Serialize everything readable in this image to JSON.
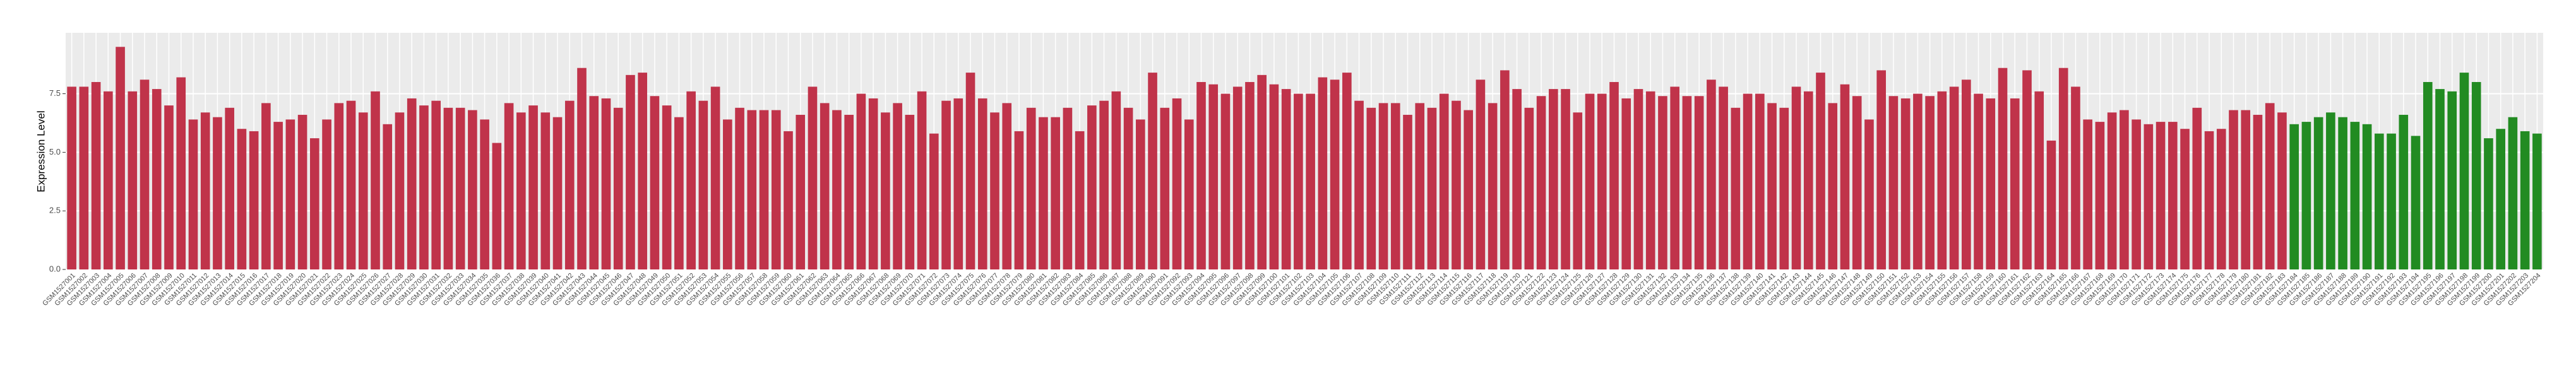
{
  "chart_data": {
    "type": "bar",
    "y_label": "Expression Level",
    "ylim": [
      0,
      10.1
    ],
    "yticks": [
      {
        "value": 0,
        "label": "0.0"
      },
      2.5,
      {
        "value": 5,
        "label": "5.0"
      },
      7.5
    ],
    "grid": true,
    "series": [
      {
        "color": "#c0334a",
        "categories": [
          "GSM1527001",
          "GSM1527002",
          "GSM1527003",
          "GSM1527004",
          "GSM1527005",
          "GSM1527006",
          "GSM1527007",
          "GSM1527008",
          "GSM1527009",
          "GSM1527010",
          "GSM1527011",
          "GSM1527012",
          "GSM1527013",
          "GSM1527014",
          "GSM1527015",
          "GSM1527016",
          "GSM1527017",
          "GSM1527018",
          "GSM1527019",
          "GSM1527020",
          "GSM1527021",
          "GSM1527022",
          "GSM1527023",
          "GSM1527024",
          "GSM1527025",
          "GSM1527026",
          "GSM1527027",
          "GSM1527028",
          "GSM1527029",
          "GSM1527030",
          "GSM1527031",
          "GSM1527032",
          "GSM1527033",
          "GSM1527034",
          "GSM1527035",
          "GSM1527036",
          "GSM1527037",
          "GSM1527038",
          "GSM1527039",
          "GSM1527040",
          "GSM1527041",
          "GSM1527042",
          "GSM1527043",
          "GSM1527044",
          "GSM1527045",
          "GSM1527046",
          "GSM1527047",
          "GSM1527048",
          "GSM1527049",
          "GSM1527050",
          "GSM1527051",
          "GSM1527052",
          "GSM1527053",
          "GSM1527054",
          "GSM1527055",
          "GSM1527056",
          "GSM1527057",
          "GSM1527058",
          "GSM1527059",
          "GSM1527060",
          "GSM1527061",
          "GSM1527062",
          "GSM1527063",
          "GSM1527064",
          "GSM1527065",
          "GSM1527066",
          "GSM1527067",
          "GSM1527068",
          "GSM1527069",
          "GSM1527070",
          "GSM1527071",
          "GSM1527072",
          "GSM1527073",
          "GSM1527074",
          "GSM1527075",
          "GSM1527076",
          "GSM1527077",
          "GSM1527078",
          "GSM1527079",
          "GSM1527080",
          "GSM1527081",
          "GSM1527082",
          "GSM1527083",
          "GSM1527084",
          "GSM1527085",
          "GSM1527086",
          "GSM1527087",
          "GSM1527088",
          "GSM1527089",
          "GSM1527090",
          "GSM1527091",
          "GSM1527092",
          "GSM1527093",
          "GSM1527094",
          "GSM1527095",
          "GSM1527096",
          "GSM1527097",
          "GSM1527098",
          "GSM1527099",
          "GSM1527100",
          "GSM1527101",
          "GSM1527102",
          "GSM1527103",
          "GSM1527104",
          "GSM1527105",
          "GSM1527106",
          "GSM1527107",
          "GSM1527108",
          "GSM1527109",
          "GSM1527110",
          "GSM1527111",
          "GSM1527112",
          "GSM1527113",
          "GSM1527114",
          "GSM1527115",
          "GSM1527116",
          "GSM1527117",
          "GSM1527118",
          "GSM1527119",
          "GSM1527120",
          "GSM1527121",
          "GSM1527122",
          "GSM1527123",
          "GSM1527124",
          "GSM1527125",
          "GSM1527126",
          "GSM1527127",
          "GSM1527128",
          "GSM1527129",
          "GSM1527130",
          "GSM1527131",
          "GSM1527132",
          "GSM1527133",
          "GSM1527134",
          "GSM1527135",
          "GSM1527136",
          "GSM1527137",
          "GSM1527138",
          "GSM1527139",
          "GSM1527140",
          "GSM1527141",
          "GSM1527142",
          "GSM1527143",
          "GSM1527144",
          "GSM1527145",
          "GSM1527146",
          "GSM1527147",
          "GSM1527148",
          "GSM1527149",
          "GSM1527150",
          "GSM1527151",
          "GSM1527152",
          "GSM1527153",
          "GSM1527154",
          "GSM1527155",
          "GSM1527156",
          "GSM1527157",
          "GSM1527158",
          "GSM1527159",
          "GSM1527160",
          "GSM1527161",
          "GSM1527162",
          "GSM1527163",
          "GSM1527164",
          "GSM1527165",
          "GSM1527166",
          "GSM1527167",
          "GSM1527168",
          "GSM1527169",
          "GSM1527170",
          "GSM1527171",
          "GSM1527172",
          "GSM1527173",
          "GSM1527174",
          "GSM1527175",
          "GSM1527176",
          "GSM1527177",
          "GSM1527178",
          "GSM1527179",
          "GSM1527180",
          "GSM1527181",
          "GSM1527182",
          "GSM1527183"
        ],
        "values": [
          7.8,
          7.8,
          8.0,
          7.6,
          9.5,
          7.6,
          8.1,
          7.7,
          7.0,
          8.2,
          6.4,
          6.7,
          6.5,
          6.9,
          6.0,
          5.9,
          7.1,
          6.3,
          6.4,
          6.6,
          5.6,
          6.4,
          7.1,
          7.2,
          6.7,
          7.6,
          6.2,
          6.7,
          7.3,
          7.0,
          7.2,
          6.9,
          6.9,
          6.8,
          6.4,
          5.4,
          7.1,
          6.7,
          7.0,
          6.7,
          6.5,
          7.2,
          8.6,
          7.4,
          7.3,
          6.9,
          8.3,
          8.4,
          7.4,
          7.0,
          6.5,
          7.6,
          7.2,
          7.8,
          6.4,
          6.9,
          6.8,
          6.8,
          6.8,
          5.9,
          6.6,
          7.8,
          7.1,
          6.8,
          6.6,
          7.5,
          7.3,
          6.7,
          7.1,
          6.6,
          7.6,
          5.8,
          7.2,
          7.3,
          8.4,
          7.3,
          6.7,
          7.1,
          5.9,
          6.9,
          6.5,
          6.5,
          6.9,
          5.9,
          7.0,
          7.2,
          7.6,
          6.9,
          6.4,
          8.4,
          6.9,
          7.3,
          6.4,
          8.0,
          7.9,
          7.5,
          7.8,
          8.0,
          8.3,
          7.9,
          7.7,
          7.5,
          7.5,
          8.2,
          8.1,
          8.4,
          7.2,
          6.9,
          7.1,
          7.1,
          6.6,
          7.1,
          6.9,
          7.5,
          7.2,
          6.8,
          8.1,
          7.1,
          8.5,
          7.7,
          6.9,
          7.4,
          7.7,
          7.7,
          6.7,
          7.5,
          7.5,
          8.0,
          7.3,
          7.7,
          7.6,
          7.4,
          7.8,
          7.4,
          7.4,
          8.1,
          7.8,
          6.9,
          7.5,
          7.5,
          7.1,
          6.9,
          7.8,
          7.6,
          8.4,
          7.1,
          7.9,
          7.4,
          6.4,
          8.5,
          7.4,
          7.3,
          7.5,
          7.4,
          7.6,
          7.8,
          8.1,
          7.5,
          7.3,
          8.6,
          7.3,
          8.5,
          7.6,
          5.5,
          8.6,
          7.8,
          6.4,
          6.3,
          6.7,
          6.8,
          6.4,
          6.2,
          6.3,
          6.3,
          6.0,
          6.9,
          5.9,
          6.0,
          6.8,
          6.8,
          6.6,
          7.1,
          6.7
        ]
      },
      {
        "color": "#228b22",
        "categories": [
          "GSM1527184",
          "GSM1527185",
          "GSM1527186",
          "GSM1527187",
          "GSM1527188",
          "GSM1527189",
          "GSM1527190",
          "GSM1527191",
          "GSM1527192",
          "GSM1527193",
          "GSM1527194",
          "GSM1527195",
          "GSM1527196",
          "GSM1527197",
          "GSM1527198",
          "GSM1527199",
          "GSM1527200",
          "GSM1527201",
          "GSM1527202",
          "GSM1527203",
          "GSM1527204"
        ],
        "values": [
          6.2,
          6.3,
          6.5,
          6.7,
          6.5,
          6.3,
          6.2,
          5.8,
          5.8,
          6.6,
          5.7,
          8.0,
          7.7,
          7.6,
          8.4,
          8.0,
          5.6,
          6.0,
          6.5,
          5.9,
          5.8
        ]
      }
    ]
  }
}
